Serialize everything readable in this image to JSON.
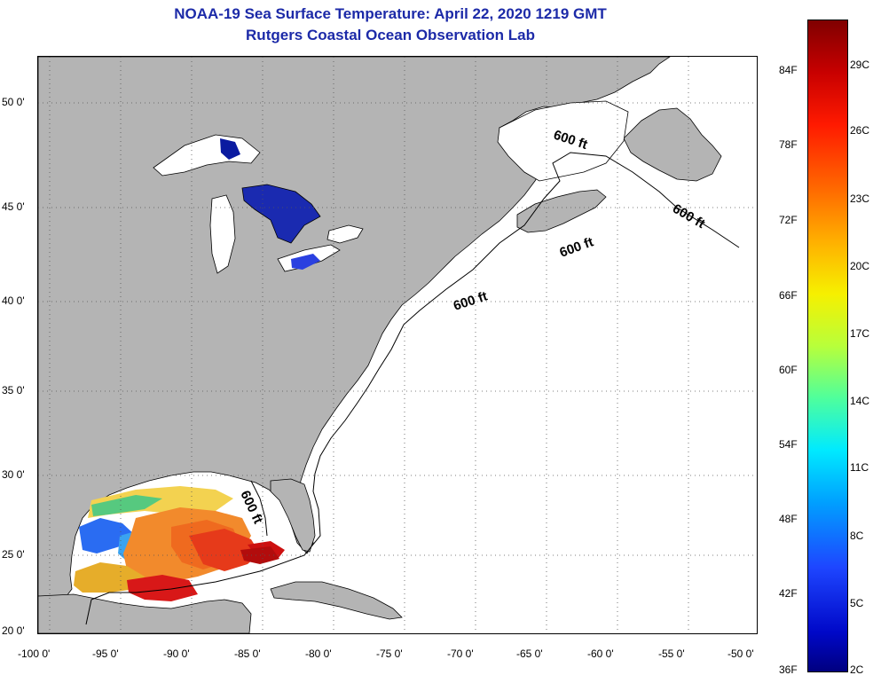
{
  "title": {
    "line1": "NOAA-19 Sea Surface Temperature:  April 22, 2020 1219 GMT",
    "line2": "Rutgers Coastal Ocean Observation Lab"
  },
  "map": {
    "latitude_labels": [
      "50 0'",
      "45 0'",
      "40 0'",
      "35 0'",
      "30 0'",
      "25 0'",
      "20 0'"
    ],
    "longitude_labels": [
      "-100 0'",
      "-95 0'",
      "-90 0'",
      "-85 0'",
      "-80 0'",
      "-75 0'",
      "-70 0'",
      "-65 0'",
      "-60 0'",
      "-55 0'",
      "-50 0'"
    ],
    "isobath_label": "600 ft",
    "colors": {
      "land": "#b4b4b4",
      "ocean_no_data": "#ffffff",
      "grid": "#555555"
    }
  },
  "colorbar": {
    "fahrenheit_labels": [
      "84F",
      "78F",
      "72F",
      "66F",
      "60F",
      "54F",
      "48F",
      "42F",
      "36F"
    ],
    "celsius_labels": [
      "29C",
      "26C",
      "23C",
      "20C",
      "17C",
      "14C",
      "11C",
      "8C",
      "5C",
      "2C"
    ]
  }
}
